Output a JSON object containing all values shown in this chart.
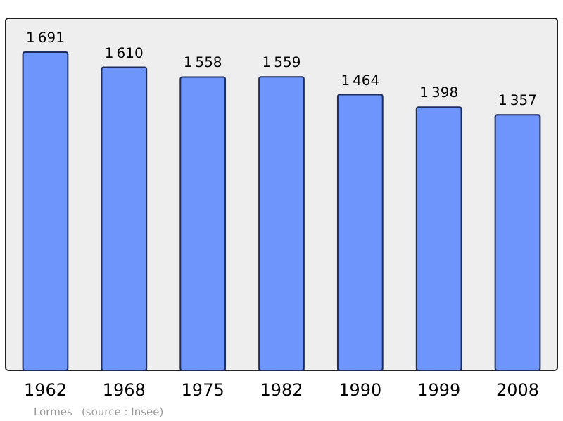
{
  "chart_data": {
    "type": "bar",
    "categories": [
      "1962",
      "1968",
      "1975",
      "1982",
      "1990",
      "1999",
      "2008"
    ],
    "values": [
      1691,
      1610,
      1558,
      1559,
      1464,
      1398,
      1357
    ],
    "color": "#6d95fc",
    "data_labels": true,
    "annotations": [
      "Lormes",
      "(source : Insee)"
    ]
  }
}
